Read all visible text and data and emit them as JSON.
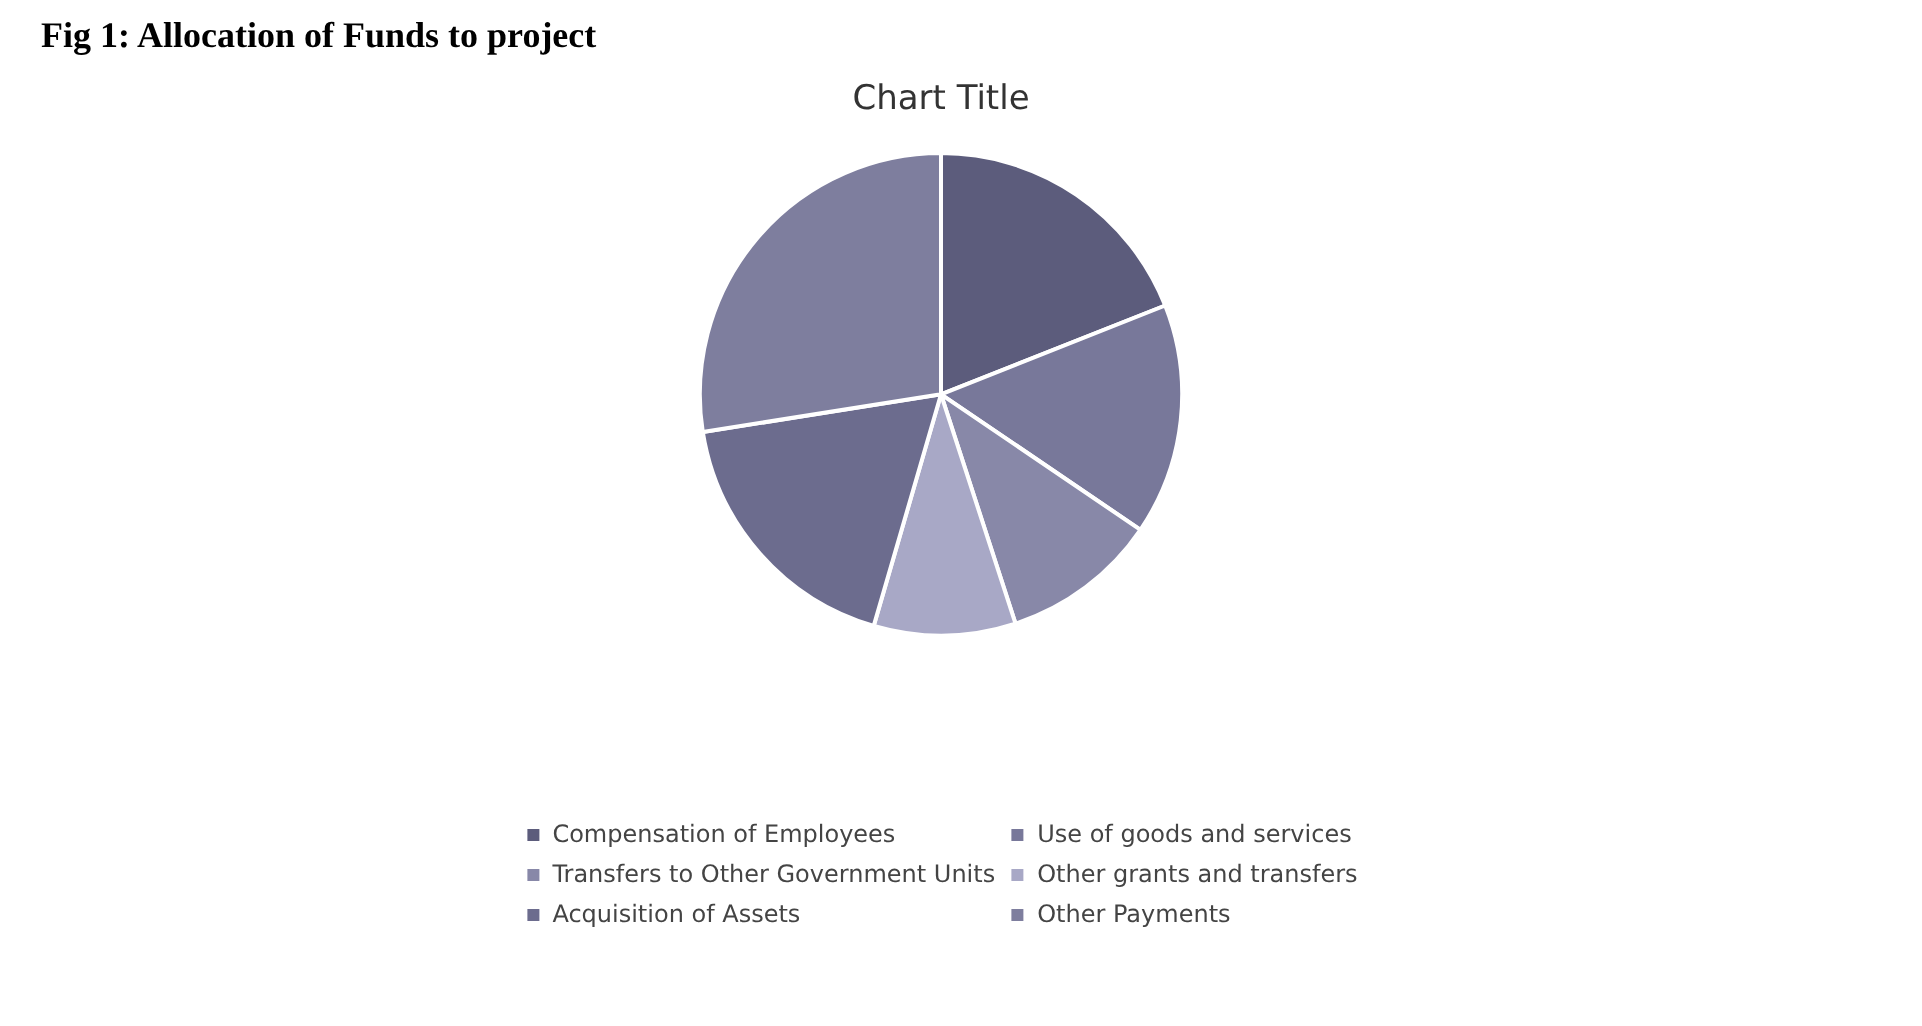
{
  "chart_data": {
    "type": "pie",
    "title": "Fig 1: Allocation of Funds to project",
    "subtitle": "Chart Title",
    "categories": [
      "Compensation of Employees",
      "Use of goods and services",
      "Transfers to Other Government Units",
      "Other grants and transfers",
      "Acquisition of Assets",
      "Other Payments"
    ],
    "values": [
      19,
      15.5,
      10.5,
      9.5,
      18,
      27.5
    ],
    "colors": [
      "#5c5c7c",
      "#78789a",
      "#8888a8",
      "#a8a8c6",
      "#6c6c8e",
      "#7e7e9e"
    ],
    "legend": "bottom"
  }
}
